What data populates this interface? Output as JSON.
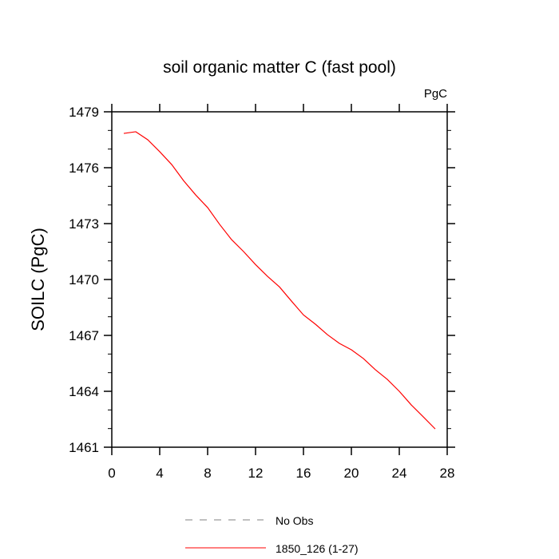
{
  "chart_data": {
    "type": "line",
    "title": "soil organic matter C (fast pool)",
    "units_label": "PgC",
    "ylabel": "SOILC  (PgC)",
    "xlabel": "",
    "xlim": [
      0,
      28
    ],
    "ylim": [
      1461,
      1479
    ],
    "xticks": [
      0,
      4,
      8,
      12,
      16,
      20,
      24,
      28
    ],
    "yticks": [
      1461,
      1464,
      1467,
      1470,
      1473,
      1476,
      1479
    ],
    "grid": false,
    "legend_placement": "bottom",
    "legend": [
      {
        "label": "No Obs",
        "style": "dashed",
        "color": "#808080"
      },
      {
        "label": "1850_126 (1-27)",
        "style": "solid",
        "color": "#ff0000"
      }
    ],
    "series": [
      {
        "name": "1850_126 (1-27)",
        "color": "#ff0000",
        "x": [
          1,
          2,
          3,
          4,
          5,
          6,
          7,
          8,
          9,
          10,
          11,
          12,
          13,
          14,
          15,
          16,
          17,
          18,
          19,
          20,
          21,
          22,
          23,
          24,
          25,
          26,
          27
        ],
        "y": [
          1477.84,
          1477.93,
          1477.5,
          1476.86,
          1476.17,
          1475.3,
          1474.54,
          1473.86,
          1472.96,
          1472.14,
          1471.5,
          1470.8,
          1470.17,
          1469.6,
          1468.84,
          1468.1,
          1467.6,
          1467.04,
          1466.57,
          1466.23,
          1465.76,
          1465.16,
          1464.64,
          1464.0,
          1463.27,
          1462.63,
          1461.98
        ]
      }
    ]
  }
}
